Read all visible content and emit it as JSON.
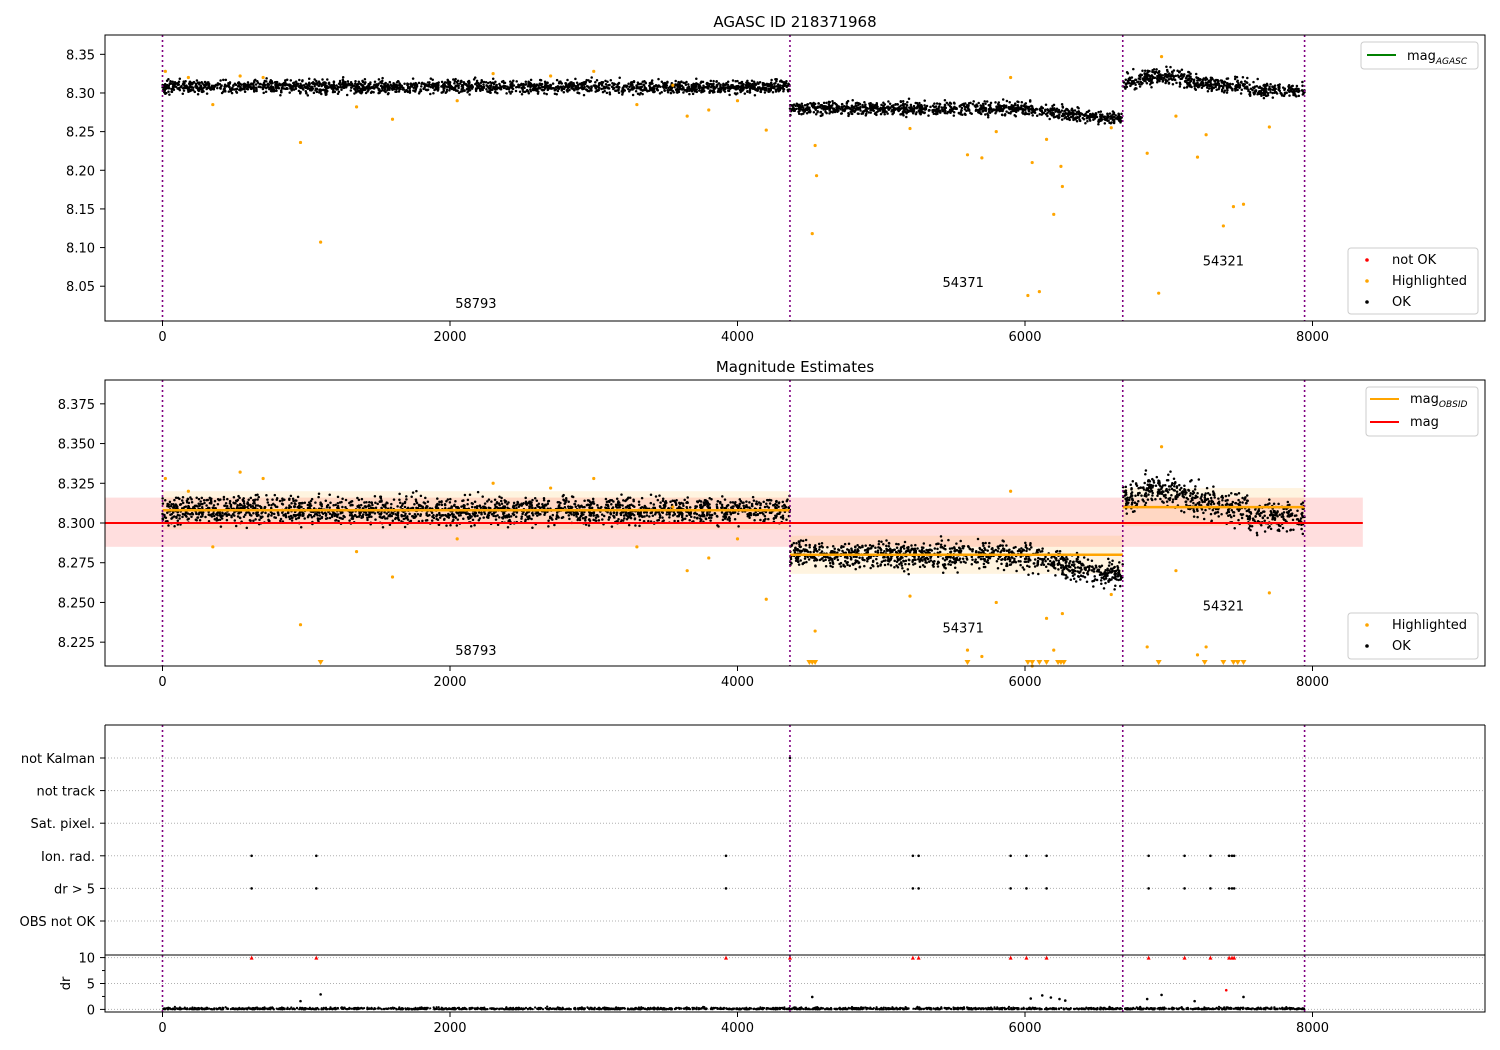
{
  "chart_data": [
    {
      "type": "scatter",
      "title": "AGASC ID 218371968",
      "xlim": [
        -400,
        9200
      ],
      "ylim": [
        8.005,
        8.375
      ],
      "x_ticks": [
        0,
        2000,
        4000,
        6000,
        8000
      ],
      "x_tick_labels": [
        "0",
        "2000",
        "4000",
        "6000",
        "8000"
      ],
      "y_ticks": [
        8.05,
        8.1,
        8.15,
        8.2,
        8.25,
        8.3,
        8.35
      ],
      "y_tick_labels": [
        "8.05",
        "8.10",
        "8.15",
        "8.20",
        "8.25",
        "8.30",
        "8.35"
      ],
      "obs_boundaries": [
        0,
        4365,
        6680,
        7945
      ],
      "segments": [
        {
          "x0": 0,
          "x1": 4365,
          "level": 8.308,
          "spread": 0.006,
          "label": "58793",
          "label_x": 2180,
          "label_y": 8.022
        },
        {
          "x0": 4365,
          "x1": 6680,
          "level": 8.28,
          "spread": 0.006,
          "label": "54371",
          "label_x": 5570,
          "label_y": 8.049
        },
        {
          "x0": 6680,
          "x1": 7945,
          "level": 8.31,
          "spread": 0.007,
          "label": "54321",
          "label_x": 7380,
          "label_y": 8.077
        }
      ],
      "series": [
        {
          "name": "OK",
          "color": "#000000"
        },
        {
          "name": "Highlighted",
          "color": "#ffa500",
          "x": [
            20,
            180,
            350,
            540,
            700,
            960,
            1100,
            1350,
            1600,
            2050,
            2300,
            2700,
            3000,
            3300,
            3550,
            3650,
            3800,
            4000,
            4200,
            4520,
            4540,
            4550,
            5200,
            5600,
            5700,
            5800,
            5900,
            6020,
            6050,
            6100,
            6150,
            6200,
            6250,
            6260,
            6600,
            6850,
            6930,
            6950,
            7050,
            7200,
            7260,
            7380,
            7450,
            7520,
            7700
          ],
          "y": [
            8.328,
            8.32,
            8.285,
            8.322,
            8.32,
            8.236,
            8.107,
            8.282,
            8.266,
            8.29,
            8.325,
            8.322,
            8.328,
            8.285,
            8.31,
            8.27,
            8.278,
            8.29,
            8.252,
            8.118,
            8.232,
            8.193,
            8.254,
            8.22,
            8.216,
            8.25,
            8.32,
            8.038,
            8.21,
            8.043,
            8.24,
            8.143,
            8.205,
            8.179,
            8.255,
            8.222,
            8.041,
            8.347,
            8.27,
            8.217,
            8.246,
            8.128,
            8.153,
            8.156,
            8.256
          ]
        },
        {
          "name": "not OK",
          "color": "#ff0000"
        }
      ],
      "lines": [
        {
          "name": "mag_AGASC",
          "color": "#008000"
        }
      ],
      "legend_top": "upper-right",
      "legend_bottom": "lower-right"
    },
    {
      "type": "scatter",
      "title": "Magnitude Estimates",
      "xlim": [
        -400,
        9200
      ],
      "ylim": [
        8.21,
        8.39
      ],
      "x_ticks": [
        0,
        2000,
        4000,
        6000,
        8000
      ],
      "x_tick_labels": [
        "0",
        "2000",
        "4000",
        "6000",
        "8000"
      ],
      "y_ticks": [
        8.225,
        8.25,
        8.275,
        8.3,
        8.325,
        8.35,
        8.375
      ],
      "y_tick_labels": [
        "8.225",
        "8.250",
        "8.275",
        "8.300",
        "8.325",
        "8.350",
        "8.375"
      ],
      "obs_boundaries": [
        0,
        4365,
        6680,
        7945
      ],
      "mag": 8.3,
      "mag_band": [
        8.285,
        8.316
      ],
      "mag_band_xlim": [
        -400,
        8350
      ],
      "segments": [
        {
          "x0": 0,
          "x1": 4365,
          "level": 8.308,
          "spread": 0.006,
          "label": "58793",
          "label_x": 2180,
          "label_y": 8.217
        },
        {
          "x0": 4365,
          "x1": 6680,
          "level": 8.28,
          "spread": 0.006,
          "label": "54371",
          "label_x": 5570,
          "label_y": 8.231
        },
        {
          "x0": 6680,
          "x1": 7945,
          "level": 8.31,
          "spread": 0.007,
          "label": "54321",
          "label_x": 7380,
          "label_y": 8.245
        }
      ],
      "series": [
        {
          "name": "OK",
          "color": "#000000"
        },
        {
          "name": "Highlighted",
          "color": "#ffa500",
          "x": [
            20,
            180,
            350,
            540,
            700,
            960,
            1350,
            1600,
            2050,
            2300,
            2700,
            3000,
            3300,
            3550,
            3650,
            3800,
            4000,
            4200,
            4540,
            5200,
            5600,
            5700,
            5800,
            5900,
            6050,
            6150,
            6200,
            6260,
            6600,
            6850,
            6950,
            7050,
            7200,
            7260,
            7700
          ],
          "y": [
            8.328,
            8.32,
            8.285,
            8.332,
            8.328,
            8.236,
            8.282,
            8.266,
            8.29,
            8.325,
            8.322,
            8.328,
            8.285,
            8.31,
            8.27,
            8.278,
            8.29,
            8.252,
            8.232,
            8.254,
            8.22,
            8.216,
            8.25,
            8.32,
            8.21,
            8.24,
            8.22,
            8.243,
            8.255,
            8.222,
            8.348,
            8.27,
            8.217,
            8.222,
            8.256
          ]
        },
        {
          "name": "Highlighted (below axis)",
          "color": "#ffa500",
          "x": [
            1100,
            4500,
            4520,
            4540,
            5600,
            6020,
            6050,
            6100,
            6150,
            6230,
            6250,
            6270,
            6930,
            7250,
            7380,
            7450,
            7480,
            7520
          ],
          "y": [
            8.212,
            8.212,
            8.212,
            8.212,
            8.212,
            8.212,
            8.212,
            8.212,
            8.212,
            8.212,
            8.212,
            8.212,
            8.212,
            8.212,
            8.212,
            8.212,
            8.212,
            8.212
          ]
        }
      ],
      "lines": [
        {
          "name": "mag_OBSID",
          "color": "#ffa500"
        },
        {
          "name": "mag",
          "color": "#ff0000"
        }
      ],
      "legend_top": "upper-right",
      "legend_bottom": "lower-right"
    },
    {
      "type": "scatter",
      "title": "",
      "xlim": [
        -400,
        9200
      ],
      "x_ticks": [
        0,
        2000,
        4000,
        6000,
        8000
      ],
      "x_tick_labels": [
        "0",
        "2000",
        "4000",
        "6000",
        "8000"
      ],
      "obs_boundaries": [
        0,
        4365,
        6680,
        7945
      ],
      "flag_categories": [
        "not Kalman",
        "not track",
        "Sat. pixel.",
        "Ion. rad.",
        "dr > 5",
        "OBS not OK"
      ],
      "flag_x": {
        "not Kalman": [
          4365
        ],
        "not track": [],
        "Sat. pixel.": [],
        "Ion. rad.": [
          620,
          1070,
          3920,
          5220,
          5260,
          5900,
          6010,
          6150,
          6860,
          7110,
          7290,
          7420,
          7440,
          7455
        ],
        "dr > 5": [
          620,
          1070,
          3920,
          5220,
          5260,
          5900,
          6010,
          6150,
          6860,
          7110,
          7290,
          7420,
          7440,
          7455
        ],
        "OBS not OK": []
      },
      "dr": {
        "ylabel": "dr",
        "ylim": [
          -0.5,
          10.5
        ],
        "y_ticks": [
          0,
          5,
          10
        ],
        "y_tick_labels": [
          "0",
          "5",
          "10"
        ],
        "clipped_x": [
          620,
          1070,
          3920,
          4365,
          5220,
          5260,
          5900,
          6010,
          6150,
          6860,
          7110,
          7290,
          7420,
          7440,
          7455
        ],
        "clipped_value": 10,
        "outliers_x": [
          960,
          1100,
          4520,
          6040,
          6120,
          6180,
          6240,
          6280,
          6850,
          6950,
          7180,
          7400,
          7520
        ],
        "outliers_y": [
          1.6,
          2.9,
          2.4,
          2.1,
          2.7,
          2.3,
          2.0,
          1.7,
          2.0,
          2.8,
          1.6,
          3.7,
          2.4
        ]
      }
    }
  ],
  "legends": {
    "top_lines": [
      "mag"
    ],
    "top_lines_sub": [
      "AGASC"
    ],
    "top_points": [
      "not OK",
      "Highlighted",
      "OK"
    ],
    "mid_lines": [
      "mag",
      "mag"
    ],
    "mid_lines_sub": [
      "OBSID",
      ""
    ],
    "mid_points": [
      "Highlighted",
      "OK"
    ]
  }
}
